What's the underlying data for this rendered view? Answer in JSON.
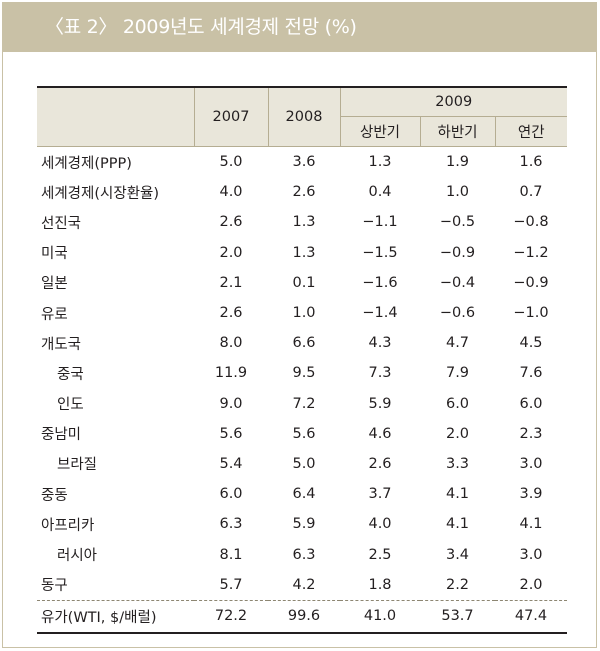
{
  "title": "〈표 2〉 2009년도 세계경제 전망 (%)",
  "headers": {
    "y2007": "2007",
    "y2008": "2008",
    "y2009": "2009",
    "h1": "상반기",
    "h2": "하반기",
    "annual": "연간"
  },
  "rows": [
    {
      "label": "세계경제(PPP)",
      "v2007": "5.0",
      "v2008": "3.6",
      "h1": "1.3",
      "h2": "1.9",
      "annual": "1.6"
    },
    {
      "label": "세계경제(시장환율)",
      "v2007": "4.0",
      "v2008": "2.6",
      "h1": "0.4",
      "h2": "1.0",
      "annual": "0.7"
    },
    {
      "label": "선진국",
      "v2007": "2.6",
      "v2008": "1.3",
      "h1": "−1.1",
      "h2": "−0.5",
      "annual": "−0.8"
    },
    {
      "label": "미국",
      "v2007": "2.0",
      "v2008": "1.3",
      "h1": "−1.5",
      "h2": "−0.9",
      "annual": "−1.2"
    },
    {
      "label": "일본",
      "v2007": "2.1",
      "v2008": "0.1",
      "h1": "−1.6",
      "h2": "−0.4",
      "annual": "−0.9"
    },
    {
      "label": "유로",
      "v2007": "2.6",
      "v2008": "1.0",
      "h1": "−1.4",
      "h2": "−0.6",
      "annual": "−1.0"
    },
    {
      "label": "개도국",
      "v2007": "8.0",
      "v2008": "6.6",
      "h1": "4.3",
      "h2": "4.7",
      "annual": "4.5"
    },
    {
      "label": "중국",
      "v2007": "11.9",
      "v2008": "9.5",
      "h1": "7.3",
      "h2": "7.9",
      "annual": "7.6"
    },
    {
      "label": "인도",
      "v2007": "9.0",
      "v2008": "7.2",
      "h1": "5.9",
      "h2": "6.0",
      "annual": "6.0"
    },
    {
      "label": "중남미",
      "v2007": "5.6",
      "v2008": "5.6",
      "h1": "4.6",
      "h2": "2.0",
      "annual": "2.3"
    },
    {
      "label": "브라질",
      "v2007": "5.4",
      "v2008": "5.0",
      "h1": "2.6",
      "h2": "3.3",
      "annual": "3.0"
    },
    {
      "label": "중동",
      "v2007": "6.0",
      "v2008": "6.4",
      "h1": "3.7",
      "h2": "4.1",
      "annual": "3.9"
    },
    {
      "label": "아프리카",
      "v2007": "6.3",
      "v2008": "5.9",
      "h1": "4.0",
      "h2": "4.1",
      "annual": "4.1"
    },
    {
      "label": "러시아",
      "v2007": "8.1",
      "v2008": "6.3",
      "h1": "2.5",
      "h2": "3.4",
      "annual": "3.0"
    },
    {
      "label": "동구",
      "v2007": "5.7",
      "v2008": "4.2",
      "h1": "1.8",
      "h2": "2.2",
      "annual": "2.0"
    }
  ],
  "oil_row": {
    "label": "유가(WTI, $/배럴)",
    "v2007": "72.2",
    "v2008": "99.6",
    "h1": "41.0",
    "h2": "53.7",
    "annual": "47.4"
  },
  "colors": {
    "title_bg": "#c9c1a6",
    "header_bg": "#e9e6da",
    "frame": "#c9c1a6"
  }
}
